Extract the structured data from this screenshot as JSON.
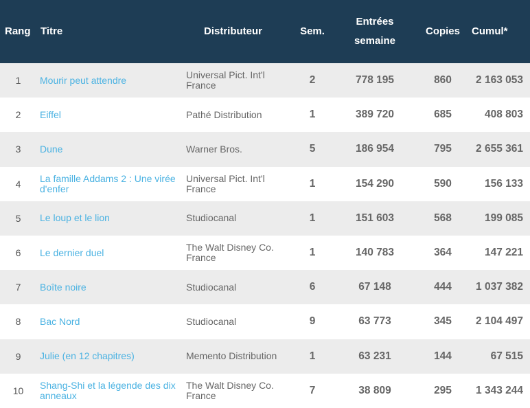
{
  "header": {
    "rang": "Rang",
    "titre": "Titre",
    "distributeur": "Distributeur",
    "sem": "Sem.",
    "entrees_line1": "Entrées",
    "entrees_line2": "semaine",
    "copies": "Copies",
    "cumul": "Cumul*"
  },
  "rows": [
    {
      "rang": "1",
      "titre": "Mourir peut attendre",
      "distributeur": "Universal Pict. Int'l France",
      "sem": "2",
      "entrees": "778 195",
      "copies": "860",
      "cumul": "2 163 053"
    },
    {
      "rang": "2",
      "titre": "Eiffel",
      "distributeur": "Pathé Distribution",
      "sem": "1",
      "entrees": "389 720",
      "copies": "685",
      "cumul": "408 803"
    },
    {
      "rang": "3",
      "titre": "Dune",
      "distributeur": "Warner Bros.",
      "sem": "5",
      "entrees": "186 954",
      "copies": "795",
      "cumul": "2 655 361"
    },
    {
      "rang": "4",
      "titre": "La famille Addams 2 : Une virée d'enfer",
      "distributeur": "Universal Pict. Int'l France",
      "sem": "1",
      "entrees": "154 290",
      "copies": "590",
      "cumul": "156 133"
    },
    {
      "rang": "5",
      "titre": "Le loup et le lion",
      "distributeur": "Studiocanal",
      "sem": "1",
      "entrees": "151 603",
      "copies": "568",
      "cumul": "199 085"
    },
    {
      "rang": "6",
      "titre": "Le dernier duel",
      "distributeur": "The Walt Disney Co. France",
      "sem": "1",
      "entrees": "140 783",
      "copies": "364",
      "cumul": "147 221"
    },
    {
      "rang": "7",
      "titre": "Boîte noire",
      "distributeur": "Studiocanal",
      "sem": "6",
      "entrees": "67 148",
      "copies": "444",
      "cumul": "1 037 382"
    },
    {
      "rang": "8",
      "titre": "Bac Nord",
      "distributeur": "Studiocanal",
      "sem": "9",
      "entrees": "63 773",
      "copies": "345",
      "cumul": "2 104 497"
    },
    {
      "rang": "9",
      "titre": "Julie (en 12 chapitres)",
      "distributeur": "Memento Distribution",
      "sem": "1",
      "entrees": "63 231",
      "copies": "144",
      "cumul": "67 515"
    },
    {
      "rang": "10",
      "titre": "Shang-Shi et la légende des dix anneaux",
      "distributeur": "The Walt Disney Co. France",
      "sem": "7",
      "entrees": "38 809",
      "copies": "295",
      "cumul": "1 343 244"
    }
  ],
  "colors": {
    "header_bg": "#1e3d55",
    "link": "#4ab2e2",
    "row_alt": "#ececec"
  }
}
